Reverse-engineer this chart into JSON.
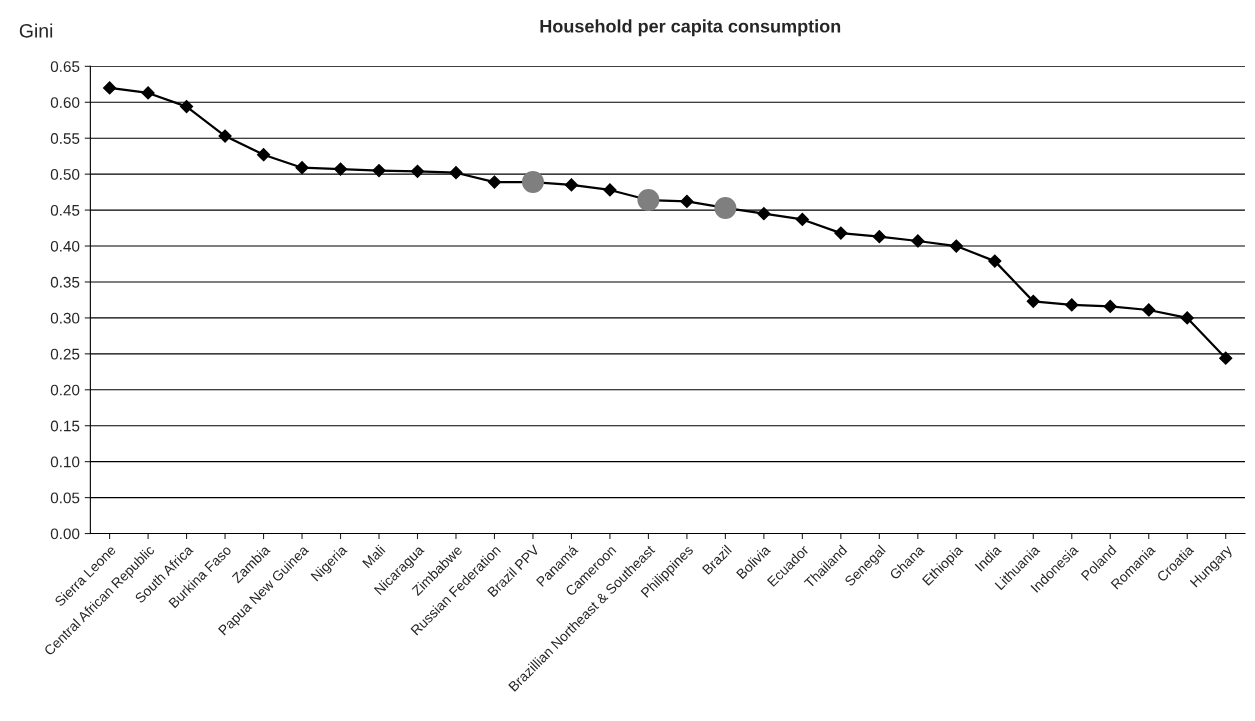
{
  "chart_data": {
    "type": "line",
    "title": "Household per capita consumption",
    "ylabel": "Gini",
    "categories": [
      "Sierra Leone",
      "Central African Republic",
      "South Africa",
      "Burkina Faso",
      "Zambia",
      "Papua New Guinea",
      "Nigeria",
      "Mali",
      "Nicaragua",
      "Zimbabwe",
      "Russian Federation",
      "Brazil PPV",
      "Panamá",
      "Cameroon",
      "Brazillian Northeast & Southeast",
      "Philippines",
      "Brazil",
      "Bolivia",
      "Ecuador",
      "Thailand",
      "Senegal",
      "Ghana",
      "Ethiopia",
      "India",
      "Lithuania",
      "Indonesia",
      "Poland",
      "Romania",
      "Croatia",
      "Hungary"
    ],
    "series": [
      {
        "color": "#000000",
        "marker": "diamond",
        "values": [
          0.62,
          0.613,
          0.594,
          0.553,
          0.527,
          0.509,
          0.507,
          0.505,
          0.504,
          0.502,
          0.489,
          0.489,
          0.485,
          0.478,
          0.464,
          0.462,
          0.453,
          0.445,
          0.437,
          0.418,
          0.413,
          0.407,
          0.4,
          0.379,
          0.323,
          0.318,
          0.316,
          0.311,
          0.3,
          0.244
        ]
      },
      {
        "type": "scatter",
        "color": "#7f7f7f",
        "marker": "circle",
        "x": [
          "Brazil PPV",
          "Brazillian Northeast & Southeast",
          "Brazil"
        ],
        "values": [
          0.489,
          0.464,
          0.453
        ]
      }
    ],
    "ylim": [
      0,
      0.65
    ],
    "yticks": [
      {
        "value": 0,
        "label": "0.00"
      },
      {
        "value": 0.05,
        "label": "0.05"
      },
      {
        "value": 0.1,
        "label": "0.10"
      },
      {
        "value": 0.15,
        "label": "0.15"
      },
      {
        "value": 0.2,
        "label": "0.20"
      },
      {
        "value": 0.25,
        "label": "0.25"
      },
      {
        "value": 0.3,
        "label": "0.30"
      },
      {
        "value": 0.35,
        "label": "0.35"
      },
      {
        "value": 0.4,
        "label": "0.40"
      },
      {
        "value": 0.45,
        "label": "0.45"
      },
      {
        "value": 0.5,
        "label": "0.50"
      },
      {
        "value": 0.55,
        "label": "0.55"
      },
      {
        "value": 0.6,
        "label": "0.60"
      },
      {
        "value": 0.65,
        "label": "0.65"
      }
    ],
    "grid": "y",
    "legend": false
  }
}
